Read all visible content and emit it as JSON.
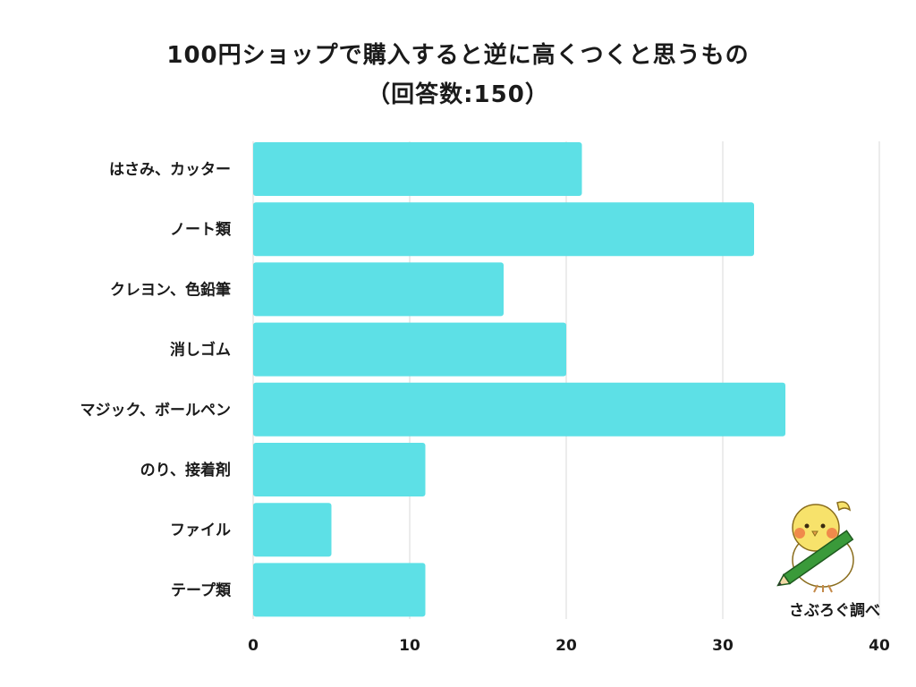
{
  "title_lines": [
    "100円ショップで購入すると逆に高くつくと思うもの",
    "（回答数:150）"
  ],
  "credit": "さぶろぐ調べ",
  "colors": {
    "bar": "#5de0e6",
    "grid": "#d9d9d9",
    "text": "#1a1a1a",
    "mascot_body": "#f7e26b",
    "mascot_cheek": "#f08a4b",
    "pencil": "#3a9a3a"
  },
  "icons": {
    "mascot": "bird-with-pencil-illustration"
  },
  "chart_data": {
    "type": "bar",
    "orientation": "horizontal",
    "categories": [
      "はさみ、カッター",
      "ノート類",
      "クレヨン、色鉛筆",
      "消しゴム",
      "マジック、ボールペン",
      "のり、接着剤",
      "ファイル",
      "テープ類"
    ],
    "values": [
      21,
      32,
      16,
      20,
      34,
      11,
      5,
      11
    ],
    "x_ticks": [
      0,
      10,
      20,
      30,
      40
    ],
    "xlim": [
      0,
      40
    ],
    "grid": true,
    "legend": "none"
  }
}
